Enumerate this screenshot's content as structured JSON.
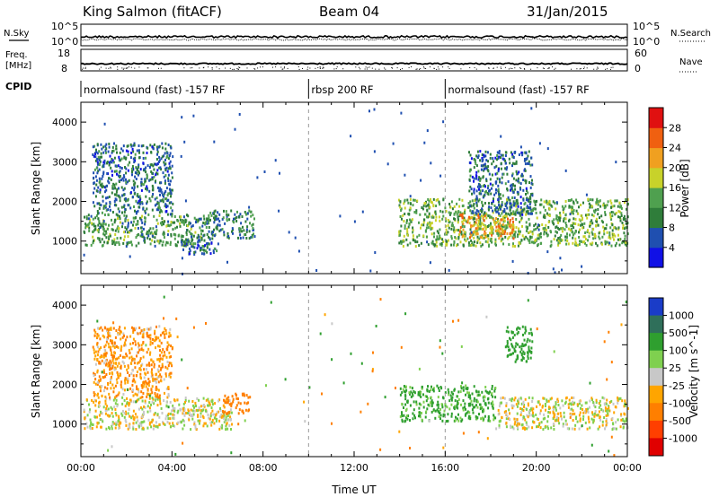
{
  "header": {
    "station": "King Salmon (fitACF)",
    "beam": "Beam 04",
    "date": "31/Jan/2015"
  },
  "panels": {
    "nsky_label": "N.Sky",
    "nsearch_label": "N.Search",
    "freq_label_1": "Freq.",
    "freq_label_2": "[MHz]",
    "nave_label": "Nave",
    "cpid_label": "CPID",
    "nsky_ticks": [
      "10^5",
      "10^0"
    ],
    "nsearch_ticks": [
      "10^5",
      "10^0"
    ],
    "freq_ticks": [
      "18",
      "8"
    ],
    "nave_ticks": [
      "60",
      "0"
    ]
  },
  "cpid_segments": [
    {
      "label": "normalsound (fast) -157 RF",
      "start_hour": 0,
      "end_hour": 10
    },
    {
      "label": "rbsp 200 RF",
      "start_hour": 10,
      "end_hour": 16
    },
    {
      "label": "normalsound (fast) -157 RF",
      "start_hour": 16,
      "end_hour": 24
    }
  ],
  "chart_data": [
    {
      "type": "heatmap",
      "quantity": "Power",
      "ylabel": "Slant Range [km]",
      "xlim": [
        0,
        24
      ],
      "ylim": [
        180,
        4500
      ],
      "yticks": [
        1000,
        2000,
        3000,
        4000
      ],
      "colorbar": {
        "label": "Power [dB]",
        "ticks": [
          "4",
          "8",
          "12",
          "16",
          "20",
          "24",
          "28"
        ],
        "colors": [
          "#1010e6",
          "#1f4fb0",
          "#2f7d3a",
          "#4fa04f",
          "#c8d22a",
          "#f0a020",
          "#f06010",
          "#e01010"
        ]
      },
      "dashed_lines_hours": [
        10,
        16
      ],
      "scatter_regions": [
        {
          "hours": [
            0.1,
            5.6
          ],
          "range_km": [
            900,
            1700
          ],
          "power_db": 12
        },
        {
          "hours": [
            0.5,
            4.0
          ],
          "range_km": [
            1700,
            3500
          ],
          "power_db": 8
        },
        {
          "hours": [
            5.5,
            7.6
          ],
          "range_km": [
            1100,
            1800
          ],
          "power_db": 10
        },
        {
          "hours": [
            4.4,
            6.0
          ],
          "range_km": [
            700,
            1200
          ],
          "power_db": 8
        },
        {
          "hours": [
            13.9,
            24.0
          ],
          "range_km": [
            900,
            2100
          ],
          "power_db": 14
        },
        {
          "hours": [
            16.6,
            19.0
          ],
          "range_km": [
            1100,
            1700
          ],
          "power_db": 22
        },
        {
          "hours": [
            17.0,
            19.8
          ],
          "range_km": [
            1700,
            3300
          ],
          "power_db": 8
        }
      ]
    },
    {
      "type": "heatmap",
      "quantity": "Velocity",
      "ylabel": "Slant Range [km]",
      "xlabel": "Time UT",
      "xlim": [
        0,
        24
      ],
      "ylim": [
        180,
        4500
      ],
      "yticks": [
        1000,
        2000,
        3000,
        4000
      ],
      "xticks": [
        "00:00",
        "04:00",
        "08:00",
        "12:00",
        "16:00",
        "20:00",
        "00:00"
      ],
      "colorbar": {
        "label": "Velocity [m s^-1]",
        "ticks": [
          "1000",
          "500",
          "100",
          "25",
          "-25",
          "-100",
          "-500",
          "-1000"
        ],
        "colors": [
          "#1a3cc8",
          "#2f6f5a",
          "#2f9f2f",
          "#7fd04f",
          "#c8c8c8",
          "#ffa500",
          "#ff7f00",
          "#ff3f00",
          "#e00000"
        ]
      },
      "dashed_lines_hours": [
        10,
        16
      ],
      "scatter_regions": [
        {
          "hours": [
            0.1,
            6.6
          ],
          "range_km": [
            900,
            1700
          ],
          "velocity": 0
        },
        {
          "hours": [
            0.5,
            4.0
          ],
          "range_km": [
            1700,
            3500
          ],
          "velocity": -100
        },
        {
          "hours": [
            6.2,
            7.4
          ],
          "range_km": [
            1300,
            1800
          ],
          "velocity": -300
        },
        {
          "hours": [
            14.0,
            18.2
          ],
          "range_km": [
            1100,
            2000
          ],
          "velocity": 150
        },
        {
          "hours": [
            18.2,
            24.0
          ],
          "range_km": [
            900,
            1700
          ],
          "velocity": 0
        },
        {
          "hours": [
            18.6,
            19.8
          ],
          "range_km": [
            2600,
            3500
          ],
          "velocity": 300
        }
      ]
    }
  ]
}
